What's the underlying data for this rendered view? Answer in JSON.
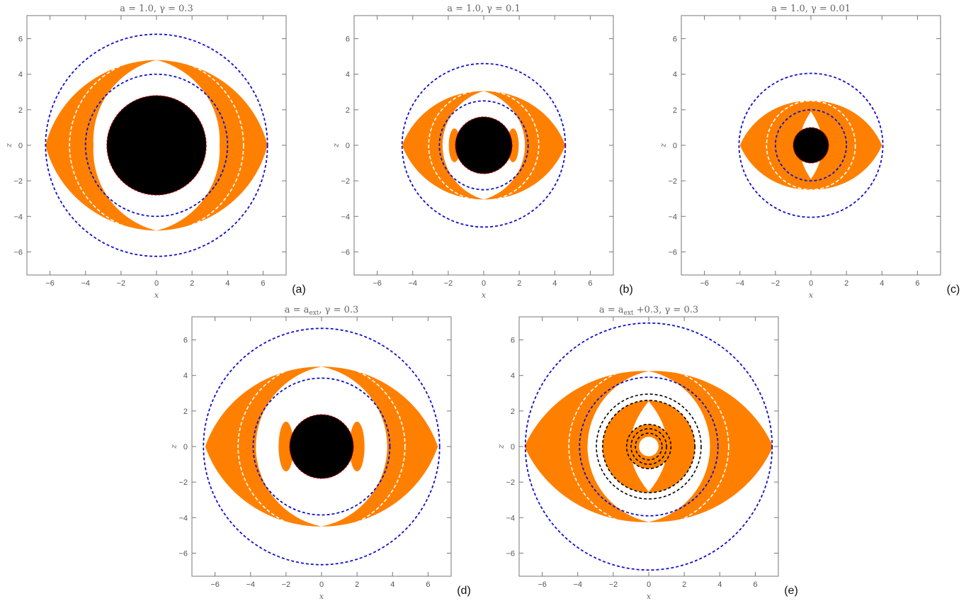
{
  "colors": {
    "region": "#ff8000",
    "horizon_fill": "#000000",
    "horizon_edge": "#e00000",
    "blue_dashed": "#1010cc",
    "white_dashed": "#ffffff",
    "black_dashed": "#000000"
  },
  "chart_data": [
    {
      "type": "region",
      "panel_tag": "(a)",
      "title": "a = 1.0, γ =  0.3",
      "xlabel": "x",
      "ylabel": "z",
      "xlim": [
        -7.3,
        7.3
      ],
      "ylim": [
        -7.3,
        7.3
      ],
      "ticks": [
        -6,
        -4,
        -2,
        0,
        2,
        4,
        6
      ],
      "blue_dashed_radii": [
        6.25,
        4.0
      ],
      "white_dashed_radius": 4.9,
      "black_dashed_radii": [],
      "horizon_radius": 2.8,
      "outer_lobe": {
        "outer_radius": 6.25,
        "pinch_z": 4.8,
        "inner_offset": 1.1,
        "inner_radius": 4.65
      },
      "inner_lobes": null,
      "inner_holes": null,
      "inner_ring": null
    },
    {
      "type": "region",
      "panel_tag": "(b)",
      "title": "a = 1.0, γ =  0.1",
      "xlabel": "x",
      "ylabel": "z",
      "xlim": [
        -7.3,
        7.3
      ],
      "ylim": [
        -7.3,
        7.3
      ],
      "ticks": [
        -6,
        -4,
        -2,
        0,
        2,
        4,
        6
      ],
      "blue_dashed_radii": [
        4.6,
        2.5
      ],
      "white_dashed_radius": 3.1,
      "black_dashed_radii": [],
      "horizon_radius": 1.6,
      "outer_lobe": {
        "outer_radius": 4.6,
        "pinch_z": 3.05,
        "inner_offset": 0.85,
        "inner_radius": 3.17
      },
      "inner_lobes": {
        "cx": 1.65,
        "rx": 0.32,
        "rz": 0.95
      },
      "inner_holes": null,
      "inner_ring": null
    },
    {
      "type": "region",
      "panel_tag": "(c)",
      "title": "a = 1.0, γ =  0.01",
      "xlabel": "x",
      "ylabel": "z",
      "xlim": [
        -7.3,
        7.3
      ],
      "ylim": [
        -7.3,
        7.3
      ],
      "ticks": [
        -6,
        -4,
        -2,
        0,
        2,
        4,
        6
      ],
      "blue_dashed_radii": [
        4.05,
        2.0
      ],
      "white_dashed_radius": 2.5,
      "black_dashed_radii": [],
      "horizon_radius": 1.0,
      "outer_lobe": {
        "outer_radius": 4.0,
        "pinch_z": 2.5,
        "inner_offset": 1.45,
        "inner_radius": 2.9
      },
      "inner_lobes": null,
      "inner_holes": {
        "offset": 1.9,
        "radius": 2.0
      },
      "inner_ring": null
    },
    {
      "type": "region",
      "panel_tag": "(d)",
      "title": "a = a_ext , γ =  0.3",
      "title_parts": {
        "pre": "a = a",
        "sub": "ext",
        "post": ", γ =  0.3"
      },
      "xlabel": "x",
      "ylabel": "z",
      "xlim": [
        -7.3,
        7.3
      ],
      "ylim": [
        -7.3,
        7.3
      ],
      "ticks": [
        -6,
        -4,
        -2,
        0,
        2,
        4,
        6
      ],
      "blue_dashed_radii": [
        6.65,
        3.85
      ],
      "white_dashed_radius": 4.7,
      "black_dashed_radii": [],
      "horizon_radius": 1.8,
      "outer_lobe": {
        "outer_radius": 6.55,
        "pinch_z": 4.5,
        "inner_offset": 0.9,
        "inner_radius": 4.6
      },
      "inner_lobes": {
        "cx": 2.0,
        "rx": 0.42,
        "rz": 1.4
      },
      "inner_holes": null,
      "inner_ring": null
    },
    {
      "type": "region",
      "panel_tag": "(e)",
      "title": "a = a_ext + 0.3, γ =  0.3",
      "title_parts": {
        "pre": "a = a",
        "sub": "ext",
        "post": " +0.3, γ =  0.3"
      },
      "xlabel": "x",
      "ylabel": "z",
      "xlim": [
        -7.3,
        7.3
      ],
      "ylim": [
        -7.3,
        7.3
      ],
      "ticks": [
        -6,
        -4,
        -2,
        0,
        2,
        4,
        6
      ],
      "blue_dashed_radii": [
        6.95,
        3.9
      ],
      "white_dashed_radius": 4.5,
      "black_dashed_radii": [
        2.95,
        2.6,
        1.25,
        1.0,
        0.75
      ],
      "horizon_radius": 0,
      "outer_lobe": {
        "outer_radius": 7.0,
        "pinch_z": 4.25,
        "inner_offset": 0.9,
        "inner_radius": 4.35
      },
      "inner_lobes": null,
      "inner_holes": null,
      "inner_ring": {
        "outer": 2.6,
        "inner": 0,
        "hole_offset": 1.55,
        "hole_radius": 2.0,
        "small_outer": 1.25,
        "small_inner": 0.55
      }
    }
  ]
}
